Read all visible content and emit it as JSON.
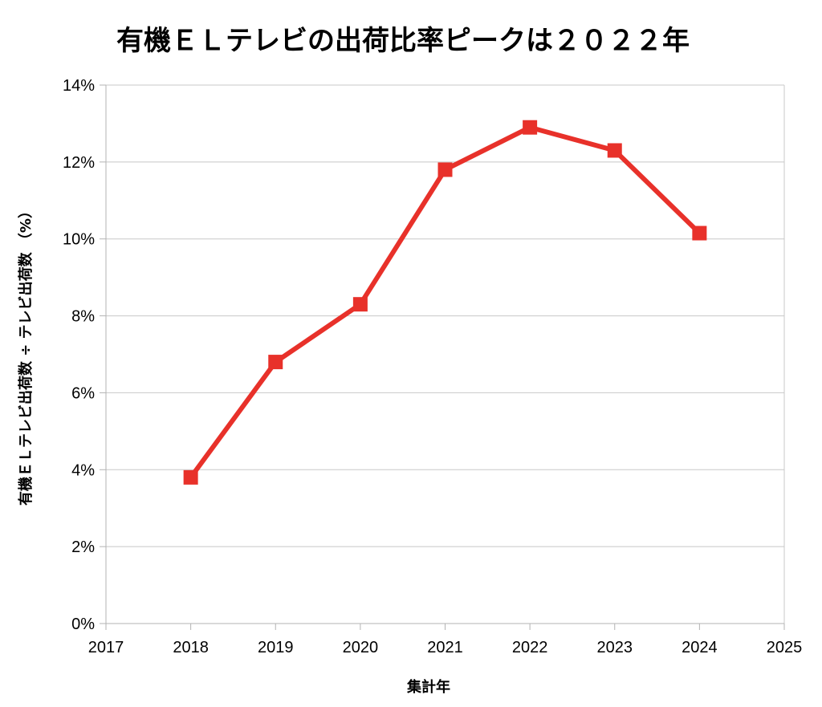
{
  "chart_data": {
    "type": "line",
    "title": "有機ＥＬテレビの出荷比率ピークは２０２２年",
    "xlabel": "集計年",
    "ylabel": "有機ＥＬテレビ出荷数 ÷ テレビ出荷数 （%）",
    "xlim": [
      2017,
      2025
    ],
    "ylim": [
      0,
      14
    ],
    "x_ticks": [
      "2017",
      "2018",
      "2019",
      "2020",
      "2021",
      "2022",
      "2023",
      "2024",
      "2025"
    ],
    "y_ticks": [
      "0%",
      "2%",
      "4%",
      "6%",
      "8%",
      "10%",
      "12%",
      "14%"
    ],
    "grid": true,
    "series": [
      {
        "x": [
          2018,
          2019,
          2020,
          2021,
          2022,
          2023,
          2024
        ],
        "values": [
          3.8,
          6.8,
          8.3,
          11.8,
          12.9,
          12.3,
          10.15
        ],
        "color": "#e8312a"
      }
    ]
  }
}
